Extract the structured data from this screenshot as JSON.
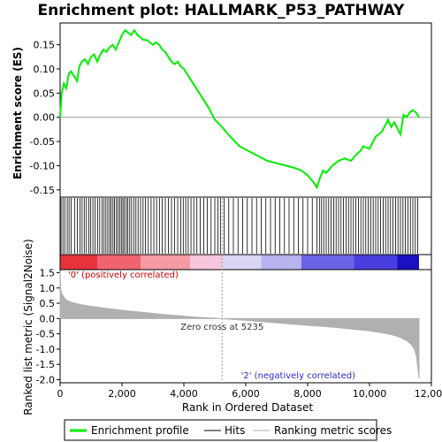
{
  "chart_data": {
    "type": "line",
    "title": "Enrichment plot: HALLMARK_P53_PATHWAY",
    "colors": {
      "profile": "#00ee00",
      "hits": "#000000",
      "metric": "#b0b0b0",
      "zero_line": "#999999"
    },
    "top_panel": {
      "ylabel": "Enrichment score (ES)",
      "ylim": [
        -0.165,
        0.195
      ],
      "yticks": [
        -0.15,
        -0.1,
        -0.05,
        0.0,
        0.05,
        0.1,
        0.15
      ],
      "ytick_labels": [
        "-0.15",
        "-0.10",
        "-0.05",
        "0.00",
        "0.05",
        "0.10",
        "0.15"
      ],
      "series": [
        {
          "name": "Enrichment profile",
          "x": [
            0,
            50,
            120,
            200,
            280,
            350,
            450,
            550,
            620,
            700,
            800,
            900,
            1000,
            1100,
            1200,
            1300,
            1400,
            1500,
            1600,
            1700,
            1800,
            1900,
            2000,
            2100,
            2200,
            2300,
            2400,
            2500,
            2600,
            2700,
            2800,
            2900,
            3000,
            3100,
            3200,
            3300,
            3400,
            3500,
            3600,
            3700,
            3800,
            3900,
            4000,
            4100,
            4200,
            4400,
            4600,
            4800,
            5000,
            5235,
            5500,
            5800,
            6100,
            6400,
            6700,
            7000,
            7300,
            7600,
            7800,
            8000,
            8200,
            8300,
            8400,
            8500,
            8600,
            8800,
            9000,
            9200,
            9400,
            9600,
            9700,
            9800,
            10000,
            10200,
            10400,
            10600,
            10700,
            10800,
            11000,
            11100,
            11200,
            11300,
            11400,
            11500,
            11600
          ],
          "y": [
            0.0,
            0.05,
            0.07,
            0.06,
            0.09,
            0.095,
            0.085,
            0.075,
            0.105,
            0.115,
            0.12,
            0.11,
            0.125,
            0.13,
            0.115,
            0.13,
            0.14,
            0.135,
            0.145,
            0.15,
            0.14,
            0.155,
            0.17,
            0.18,
            0.175,
            0.17,
            0.18,
            0.17,
            0.165,
            0.16,
            0.16,
            0.155,
            0.15,
            0.155,
            0.15,
            0.14,
            0.135,
            0.125,
            0.115,
            0.11,
            0.115,
            0.105,
            0.1,
            0.09,
            0.08,
            0.06,
            0.04,
            0.02,
            -0.005,
            -0.02,
            -0.04,
            -0.06,
            -0.07,
            -0.08,
            -0.09,
            -0.095,
            -0.1,
            -0.105,
            -0.11,
            -0.12,
            -0.135,
            -0.145,
            -0.125,
            -0.11,
            -0.115,
            -0.1,
            -0.09,
            -0.085,
            -0.09,
            -0.075,
            -0.07,
            -0.06,
            -0.065,
            -0.04,
            -0.03,
            -0.005,
            -0.02,
            -0.01,
            -0.035,
            0.005,
            0.0,
            0.01,
            0.015,
            0.01,
            0.0
          ]
        }
      ]
    },
    "hits_panel": {
      "name": "Hits",
      "positions": [
        30,
        90,
        150,
        230,
        290,
        360,
        470,
        560,
        640,
        710,
        780,
        850,
        930,
        990,
        1060,
        1130,
        1210,
        1280,
        1360,
        1420,
        1480,
        1540,
        1600,
        1650,
        1710,
        1760,
        1820,
        1870,
        1930,
        1980,
        2030,
        2080,
        2140,
        2190,
        2250,
        2310,
        2380,
        2450,
        2520,
        2600,
        2680,
        2760,
        2850,
        2940,
        3030,
        3120,
        3210,
        3300,
        3400,
        3500,
        3600,
        3700,
        3800,
        3900,
        3980,
        4060,
        4140,
        4230,
        4320,
        4420,
        4530,
        4640,
        4760,
        4880,
        5000,
        5100,
        5180,
        5300,
        5450,
        5600,
        5750,
        5900,
        6050,
        6200,
        6350,
        6500,
        6650,
        6800,
        6950,
        7100,
        7250,
        7400,
        7550,
        7700,
        7850,
        8000,
        8150,
        8300,
        8380,
        8450,
        8520,
        8600,
        8680,
        8760,
        8840,
        8920,
        9000,
        9080,
        9160,
        9240,
        9320,
        9400,
        9480,
        9560,
        9640,
        9720,
        9800,
        9880,
        9960,
        10040,
        10120,
        10200,
        10280,
        10360,
        10440,
        10520,
        10600,
        10680,
        10760,
        10840,
        10920,
        11000,
        11080,
        11160,
        11240,
        11320,
        11400,
        11480,
        11560
      ]
    },
    "colorbar": {
      "segments": [
        {
          "x": [
            0,
            1200
          ],
          "color": "#e8333d"
        },
        {
          "x": [
            1200,
            2600
          ],
          "color": "#ef6470"
        },
        {
          "x": [
            2600,
            4200
          ],
          "color": "#f59aa3"
        },
        {
          "x": [
            4200,
            5235
          ],
          "color": "#f7c6dc"
        },
        {
          "x": [
            5235,
            6500
          ],
          "color": "#d9d6f3"
        },
        {
          "x": [
            6500,
            7800
          ],
          "color": "#b7b3ee"
        },
        {
          "x": [
            7800,
            9500
          ],
          "color": "#6b63e6"
        },
        {
          "x": [
            9500,
            10900
          ],
          "color": "#4a3fde"
        },
        {
          "x": [
            10900,
            11600
          ],
          "color": "#1a12c0"
        }
      ]
    },
    "bottom_panel": {
      "ylabel": "Ranked list metric (Signal2Noise)",
      "xlabel": "Rank in Ordered Dataset",
      "ylim": [
        -2.1,
        1.6
      ],
      "yticks": [
        -2.0,
        -1.5,
        -1.0,
        -0.5,
        0.0,
        0.5,
        1.0,
        1.5
      ],
      "ytick_labels": [
        "-2.0",
        "-1.5",
        "-1.0",
        "-0.5",
        "0.0",
        "0.5",
        "1.0",
        "1.5"
      ],
      "series": [
        {
          "name": "Ranking metric scores",
          "x": [
            0,
            20,
            60,
            120,
            200,
            400,
            700,
            1000,
            1500,
            2000,
            2500,
            3000,
            3500,
            4000,
            4500,
            5235,
            6000,
            6500,
            7000,
            7500,
            8000,
            8500,
            9000,
            9500,
            10000,
            10500,
            10800,
            11000,
            11200,
            11350,
            11450,
            11520,
            11560,
            11600
          ],
          "y": [
            1.55,
            0.95,
            0.8,
            0.7,
            0.6,
            0.52,
            0.45,
            0.4,
            0.33,
            0.27,
            0.22,
            0.17,
            0.12,
            0.08,
            0.04,
            0.0,
            -0.06,
            -0.1,
            -0.14,
            -0.18,
            -0.22,
            -0.26,
            -0.3,
            -0.35,
            -0.4,
            -0.48,
            -0.55,
            -0.62,
            -0.72,
            -0.85,
            -1.0,
            -1.25,
            -1.6,
            -1.95
          ]
        }
      ],
      "annotations": {
        "positive": "'0' (positively correlated)",
        "negative": "'2' (negatively correlated)",
        "zero_cross": "Zero cross at 5235"
      }
    },
    "x_axis": {
      "xlim": [
        0,
        12000
      ],
      "xticks": [
        0,
        2000,
        4000,
        6000,
        8000,
        10000,
        12000
      ],
      "xtick_labels": [
        "0",
        "2,000",
        "4,000",
        "6,000",
        "8,000",
        "10,000",
        "12,000"
      ]
    },
    "zero_cross": 5235,
    "legend": {
      "placement": "bottom",
      "entries": [
        "Enrichment profile",
        "Hits",
        "Ranking metric scores"
      ]
    }
  }
}
